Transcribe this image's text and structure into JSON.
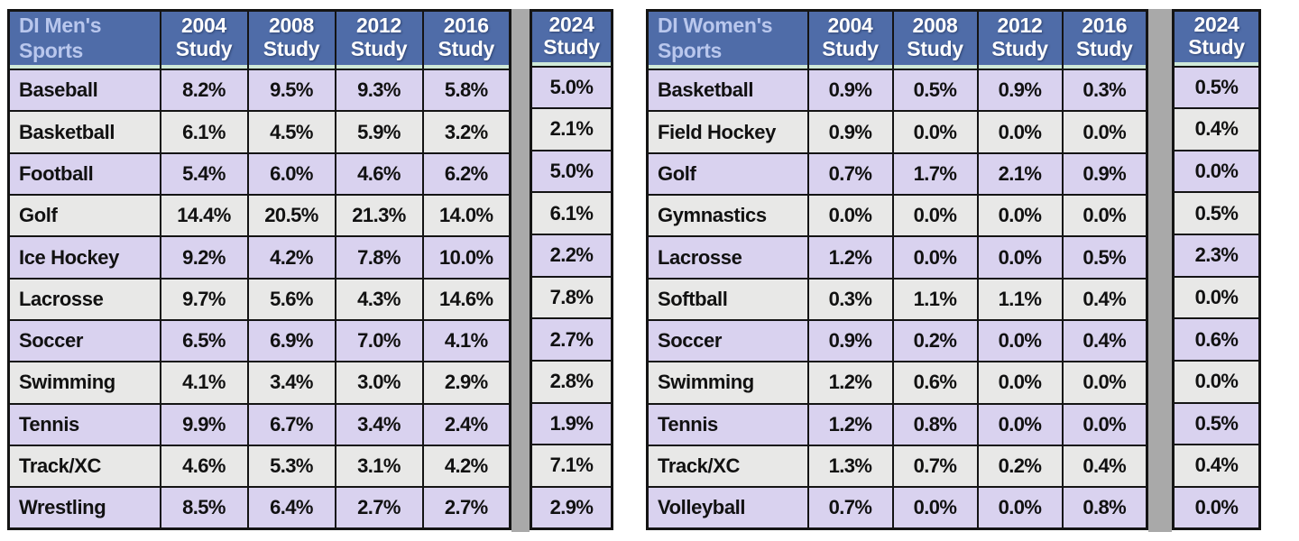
{
  "colors": {
    "header_bg": "#4f6ca8",
    "header_title_text": "#b9c7ed",
    "header_year_text": "#ffffff",
    "row_lavender": "#d9d2ef",
    "row_gray": "#e8e8e7",
    "border": "#141414",
    "separator_bar": "#a9a9a9",
    "header_accent_line": "#cfe9d8",
    "page_bg": "#ffffff",
    "value_text": "#111111"
  },
  "chart_data": [
    {
      "type": "table",
      "title": "DI Men's Sports",
      "year_columns": [
        {
          "year": "2004",
          "label": "Study"
        },
        {
          "year": "2008",
          "label": "Study"
        },
        {
          "year": "2012",
          "label": "Study"
        },
        {
          "year": "2016",
          "label": "Study"
        }
      ],
      "extra_column": {
        "year": "2024",
        "label": "Study"
      },
      "rows": [
        {
          "sport": "Baseball",
          "values": [
            "8.2%",
            "9.5%",
            "9.3%",
            "5.8%"
          ],
          "extra": "5.0%"
        },
        {
          "sport": "Basketball",
          "values": [
            "6.1%",
            "4.5%",
            "5.9%",
            "3.2%"
          ],
          "extra": "2.1%"
        },
        {
          "sport": "Football",
          "values": [
            "5.4%",
            "6.0%",
            "4.6%",
            "6.2%"
          ],
          "extra": "5.0%"
        },
        {
          "sport": "Golf",
          "values": [
            "14.4%",
            "20.5%",
            "21.3%",
            "14.0%"
          ],
          "extra": "6.1%"
        },
        {
          "sport": "Ice Hockey",
          "values": [
            "9.2%",
            "4.2%",
            "7.8%",
            "10.0%"
          ],
          "extra": "2.2%"
        },
        {
          "sport": "Lacrosse",
          "values": [
            "9.7%",
            "5.6%",
            "4.3%",
            "14.6%"
          ],
          "extra": "7.8%"
        },
        {
          "sport": "Soccer",
          "values": [
            "6.5%",
            "6.9%",
            "7.0%",
            "4.1%"
          ],
          "extra": "2.7%"
        },
        {
          "sport": "Swimming",
          "values": [
            "4.1%",
            "3.4%",
            "3.0%",
            "2.9%"
          ],
          "extra": "2.8%"
        },
        {
          "sport": "Tennis",
          "values": [
            "9.9%",
            "6.7%",
            "3.4%",
            "2.4%"
          ],
          "extra": "1.9%"
        },
        {
          "sport": "Track/XC",
          "values": [
            "4.6%",
            "5.3%",
            "3.1%",
            "4.2%"
          ],
          "extra": "7.1%"
        },
        {
          "sport": "Wrestling",
          "values": [
            "8.5%",
            "6.4%",
            "2.7%",
            "2.7%"
          ],
          "extra": "2.9%"
        }
      ]
    },
    {
      "type": "table",
      "title": "DI Women's Sports",
      "year_columns": [
        {
          "year": "2004",
          "label": "Study"
        },
        {
          "year": "2008",
          "label": "Study"
        },
        {
          "year": "2012",
          "label": "Study"
        },
        {
          "year": "2016",
          "label": "Study"
        }
      ],
      "extra_column": {
        "year": "2024",
        "label": "Study"
      },
      "rows": [
        {
          "sport": "Basketball",
          "values": [
            "0.9%",
            "0.5%",
            "0.9%",
            "0.3%"
          ],
          "extra": "0.5%"
        },
        {
          "sport": "Field Hockey",
          "values": [
            "0.9%",
            "0.0%",
            "0.0%",
            "0.0%"
          ],
          "extra": "0.4%"
        },
        {
          "sport": "Golf",
          "values": [
            "0.7%",
            "1.7%",
            "2.1%",
            "0.9%"
          ],
          "extra": "0.0%"
        },
        {
          "sport": "Gymnastics",
          "values": [
            "0.0%",
            "0.0%",
            "0.0%",
            "0.0%"
          ],
          "extra": "0.5%"
        },
        {
          "sport": "Lacrosse",
          "values": [
            "1.2%",
            "0.0%",
            "0.0%",
            "0.5%"
          ],
          "extra": "2.3%"
        },
        {
          "sport": "Softball",
          "values": [
            "0.3%",
            "1.1%",
            "1.1%",
            "0.4%"
          ],
          "extra": "0.0%"
        },
        {
          "sport": "Soccer",
          "values": [
            "0.9%",
            "0.2%",
            "0.0%",
            "0.4%"
          ],
          "extra": "0.6%"
        },
        {
          "sport": "Swimming",
          "values": [
            "1.2%",
            "0.6%",
            "0.0%",
            "0.0%"
          ],
          "extra": "0.0%"
        },
        {
          "sport": "Tennis",
          "values": [
            "1.2%",
            "0.8%",
            "0.0%",
            "0.0%"
          ],
          "extra": "0.5%"
        },
        {
          "sport": "Track/XC",
          "values": [
            "1.3%",
            "0.7%",
            "0.2%",
            "0.4%"
          ],
          "extra": "0.4%"
        },
        {
          "sport": "Volleyball",
          "values": [
            "0.7%",
            "0.0%",
            "0.0%",
            "0.8%"
          ],
          "extra": "0.0%"
        }
      ]
    }
  ]
}
